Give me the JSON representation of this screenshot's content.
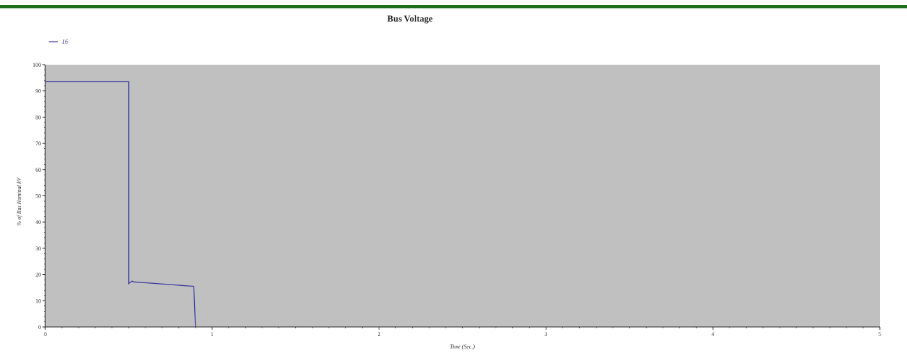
{
  "colors": {
    "top_bar": "#1e6e1e",
    "plot_bg": "#c0c0c0",
    "series_line": "#3b3ba0"
  },
  "chart_data": {
    "type": "line",
    "title": "Bus Voltage",
    "xlabel": "Time (Sec.)",
    "ylabel": "% of Bus Nominal kV",
    "xlim": [
      0,
      5
    ],
    "ylim": [
      0,
      100
    ],
    "xticks": [
      0,
      1,
      2,
      3,
      4,
      5
    ],
    "yticks": [
      0,
      10,
      20,
      30,
      40,
      50,
      60,
      70,
      80,
      90,
      100
    ],
    "grid": false,
    "legend_position": "top-left",
    "series": [
      {
        "name": "16",
        "x": [
          0,
          0.5,
          0.5,
          0.52,
          0.53,
          0.89,
          0.9
        ],
        "y": [
          93.5,
          93.5,
          16.5,
          17.5,
          17.2,
          15.5,
          0
        ]
      }
    ]
  }
}
